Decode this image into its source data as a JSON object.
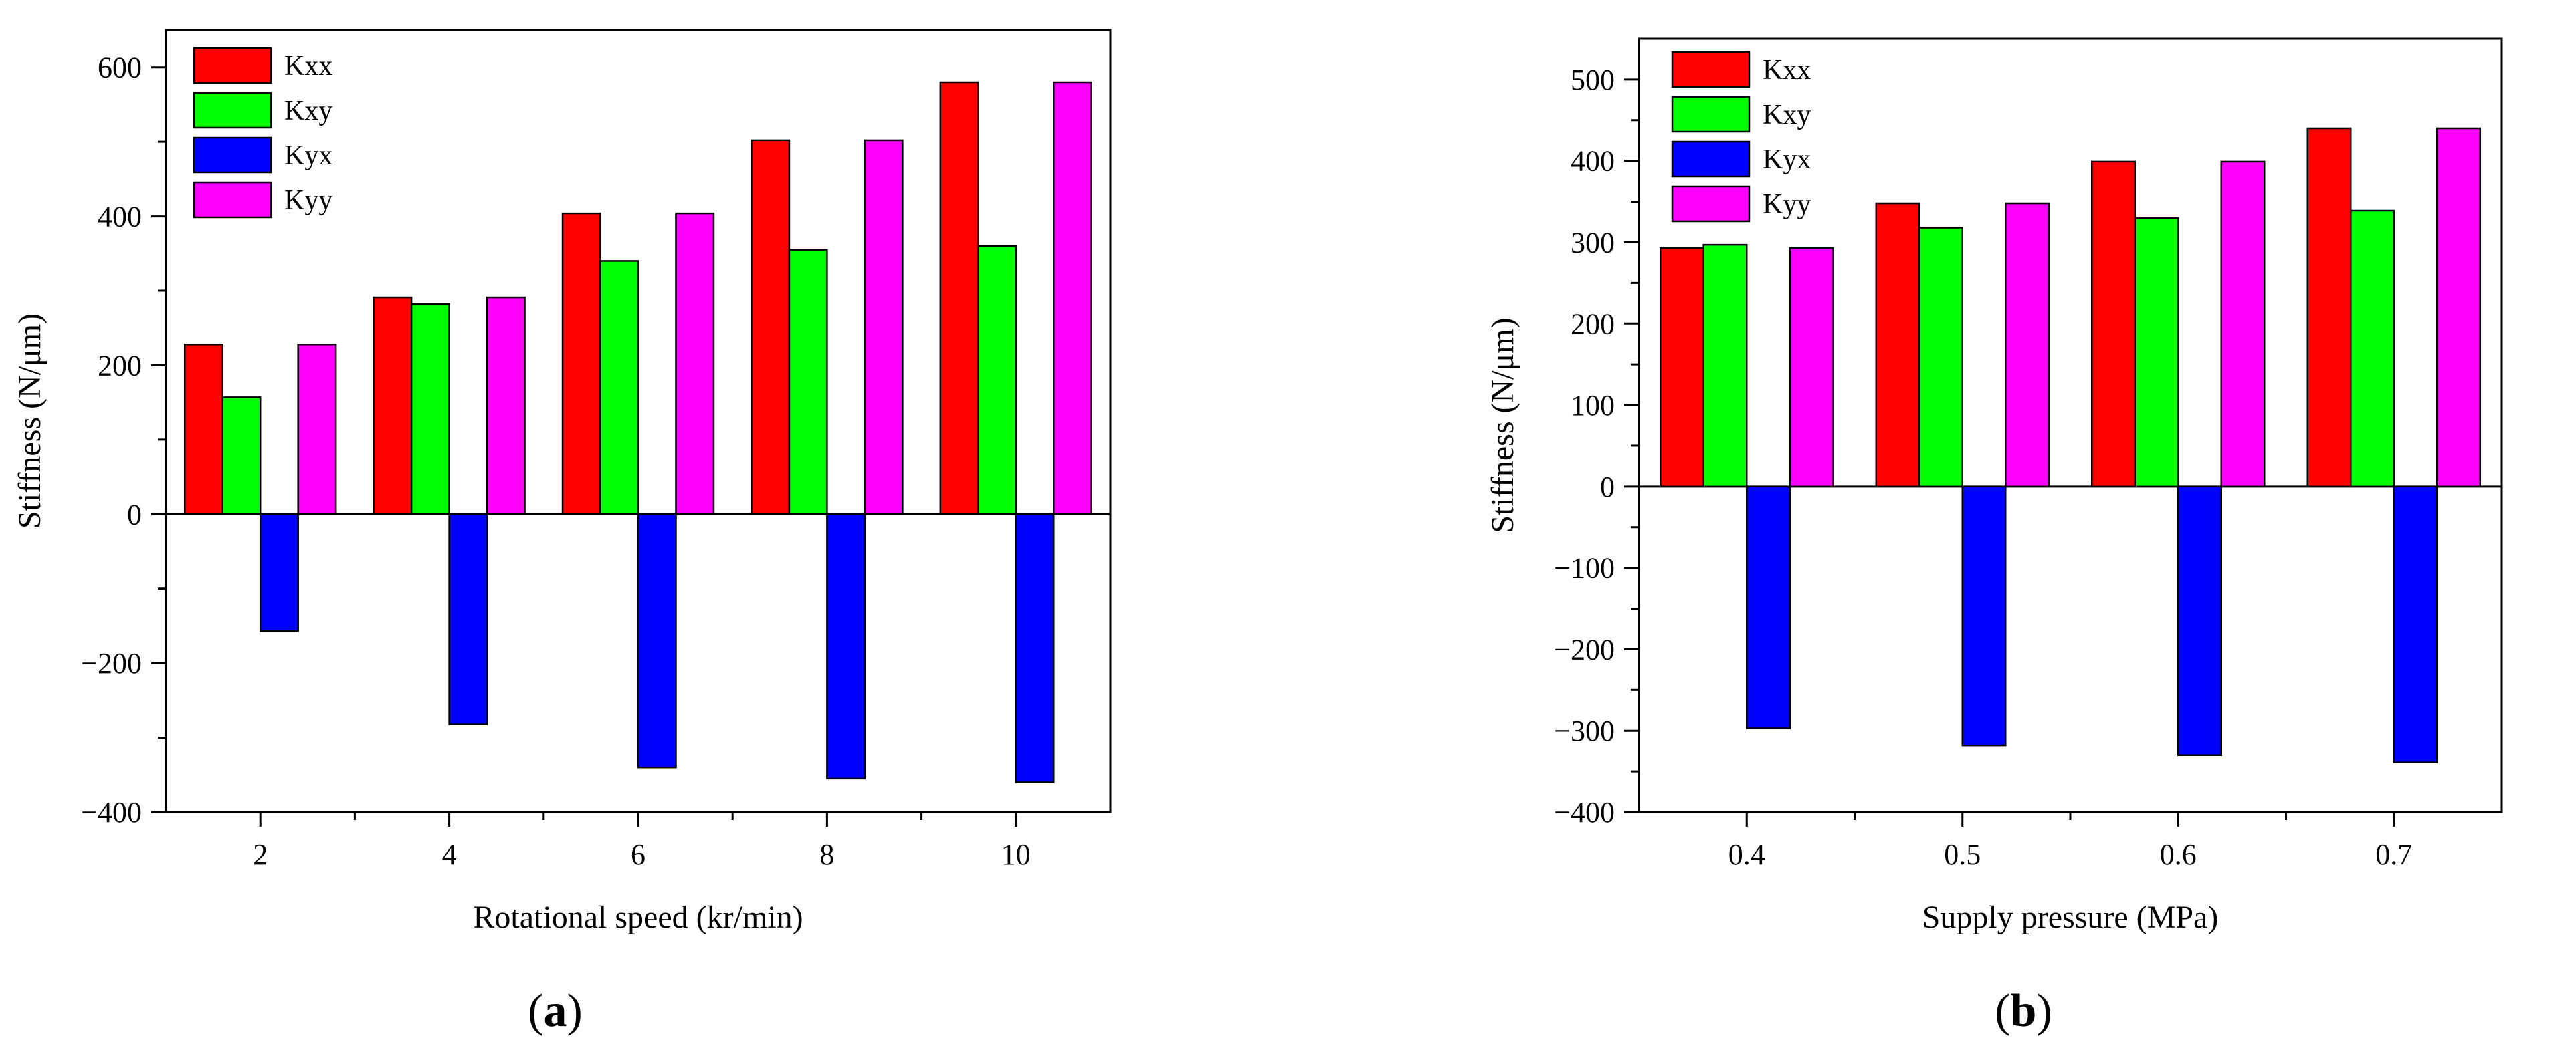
{
  "chart_data": [
    {
      "type": "bar",
      "panel": "a",
      "panel_label": "a",
      "xlabel": "Rotational speed (kr/min)",
      "ylabel": "Stiffness (N/μm)",
      "ylim": [
        -400,
        650
      ],
      "yticks": [
        -400,
        -200,
        0,
        200,
        400,
        600
      ],
      "categories": [
        "2",
        "4",
        "6",
        "8",
        "10"
      ],
      "series": [
        {
          "name": "Kxx",
          "color": "#ff0000",
          "values": [
            228,
            291,
            404,
            502,
            580
          ]
        },
        {
          "name": "Kxy",
          "color": "#00ff00",
          "values": [
            157,
            282,
            340,
            355,
            360
          ]
        },
        {
          "name": "Kyx",
          "color": "#0000ff",
          "values": [
            -157,
            -282,
            -340,
            -355,
            -360
          ]
        },
        {
          "name": "Kyy",
          "color": "#ff00ff",
          "values": [
            228,
            291,
            404,
            502,
            580
          ]
        }
      ],
      "legend": "top-left"
    },
    {
      "type": "bar",
      "panel": "b",
      "panel_label": "b",
      "xlabel": "Supply pressure (MPa)",
      "ylabel": "Stiffness (N/μm)",
      "ylim": [
        -400,
        550
      ],
      "yticks": [
        -400,
        -300,
        -200,
        -100,
        0,
        100,
        200,
        300,
        400,
        500
      ],
      "categories": [
        "0.4",
        "0.5",
        "0.6",
        "0.7"
      ],
      "series": [
        {
          "name": "Kxx",
          "color": "#ff0000",
          "values": [
            293,
            348,
            399,
            440
          ]
        },
        {
          "name": "Kxy",
          "color": "#00ff00",
          "values": [
            297,
            318,
            330,
            339
          ]
        },
        {
          "name": "Kyx",
          "color": "#0000ff",
          "values": [
            -297,
            -318,
            -330,
            -339
          ]
        },
        {
          "name": "Kyy",
          "color": "#ff00ff",
          "values": [
            293,
            348,
            399,
            440
          ]
        }
      ],
      "legend": "top-left"
    }
  ]
}
